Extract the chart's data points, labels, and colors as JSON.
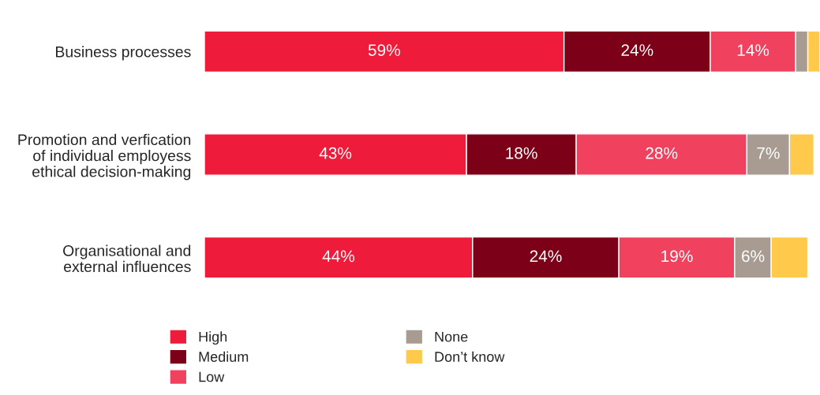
{
  "chart_data": {
    "type": "bar",
    "orientation": "horizontal",
    "stacked": true,
    "categories": [
      "Business processes",
      "Promotion and verfication\nof individual employess\nethical decision-making",
      "Organisational and\nexternal influences"
    ],
    "series": [
      {
        "name": "High",
        "color": "#ee1c3a",
        "values": [
          59,
          43,
          44
        ],
        "value_labels": [
          "59%",
          "43%",
          "44%"
        ]
      },
      {
        "name": "Medium",
        "color": "#7d0019",
        "values": [
          24,
          18,
          24
        ],
        "value_labels": [
          "24%",
          "18%",
          "24%"
        ]
      },
      {
        "name": "Low",
        "color": "#f0425f",
        "values": [
          14,
          28,
          19
        ],
        "value_labels": [
          "14%",
          "28%",
          "19%"
        ]
      },
      {
        "name": "None",
        "color": "#a89c92",
        "values": [
          2,
          7,
          6
        ],
        "value_labels": [
          null,
          "7%",
          "6%"
        ]
      },
      {
        "name": "Don’t know",
        "color": "#ffc94c",
        "values": [
          2,
          4,
          6
        ],
        "value_labels": [
          null,
          null,
          null
        ]
      }
    ],
    "legend": "bottom",
    "grid": false
  }
}
